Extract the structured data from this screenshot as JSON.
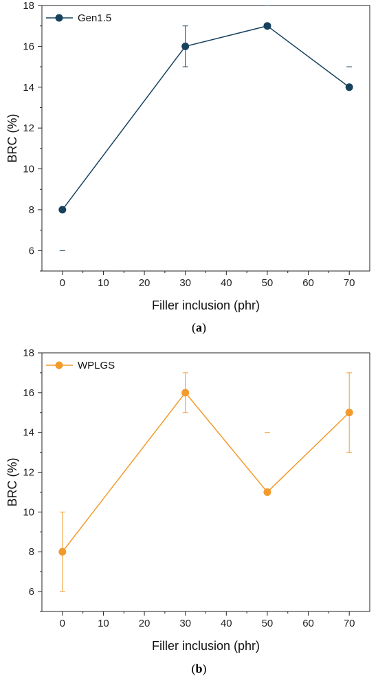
{
  "chart_data": [
    {
      "type": "line",
      "panel_label": "a",
      "xlabel": "Filler inclusion (phr)",
      "ylabel": "BRC (%)",
      "xlim": [
        -5,
        75
      ],
      "ylim": [
        5,
        18
      ],
      "xticks": [
        0,
        10,
        20,
        30,
        40,
        50,
        60,
        70
      ],
      "yticks": [
        6,
        8,
        10,
        12,
        14,
        16,
        18
      ],
      "grid": false,
      "legend_position": "top-left",
      "series": [
        {
          "name": "Gen1.5",
          "color": "#17425e",
          "marker": "circle",
          "x": [
            0,
            30,
            50,
            70
          ],
          "y": [
            8,
            16,
            17,
            14
          ],
          "error_low": [
            6,
            15,
            18,
            15
          ],
          "error_high": [
            6,
            17,
            18,
            15
          ]
        }
      ]
    },
    {
      "type": "line",
      "panel_label": "b",
      "xlabel": "Filler inclusion (phr)",
      "ylabel": "BRC (%)",
      "xlim": [
        -5,
        75
      ],
      "ylim": [
        5,
        18
      ],
      "xticks": [
        0,
        10,
        20,
        30,
        40,
        50,
        60,
        70
      ],
      "yticks": [
        6,
        8,
        10,
        12,
        14,
        16,
        18
      ],
      "grid": false,
      "legend_position": "top-left",
      "series": [
        {
          "name": "WPLGS",
          "color": "#f39a2c",
          "marker": "circle",
          "x": [
            0,
            30,
            50,
            70
          ],
          "y": [
            8,
            16,
            11,
            15
          ],
          "error_low": [
            6,
            15,
            14,
            13
          ],
          "error_high": [
            10,
            17,
            14,
            17
          ]
        }
      ]
    }
  ]
}
